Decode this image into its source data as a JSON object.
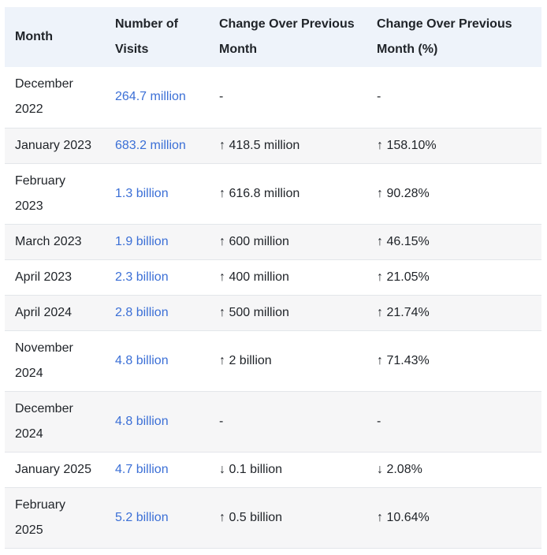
{
  "table": {
    "headers": {
      "month": "Month",
      "visits": "Number of Visits",
      "change": "Change Over Previous Month",
      "change_pct": "Change Over Previous Month (%)"
    },
    "rows": [
      {
        "month": "December 2022",
        "visits": "264.7 million",
        "change": "-",
        "change_pct": "-"
      },
      {
        "month": "January 2023",
        "visits": "683.2 million",
        "change": "↑ 418.5 million",
        "change_pct": "↑ 158.10%"
      },
      {
        "month": "February 2023",
        "visits": "1.3 billion",
        "change": "↑ 616.8 million",
        "change_pct": "↑ 90.28%"
      },
      {
        "month": "March 2023",
        "visits": "1.9 billion",
        "change": "↑ 600 million",
        "change_pct": "↑ 46.15%"
      },
      {
        "month": "April 2023",
        "visits": "2.3 billion",
        "change": "↑ 400 million",
        "change_pct": "↑ 21.05%"
      },
      {
        "month": "April 2024",
        "visits": "2.8 billion",
        "change": "↑ 500 million",
        "change_pct": "↑ 21.74%"
      },
      {
        "month": "November 2024",
        "visits": "4.8 billion",
        "change": "↑ 2 billion",
        "change_pct": "↑ 71.43%"
      },
      {
        "month": "December 2024",
        "visits": "4.8 billion",
        "change": "-",
        "change_pct": "-"
      },
      {
        "month": "January 2025",
        "visits": "4.7 billion",
        "change": "↓ 0.1 billion",
        "change_pct": "↓ 2.08%"
      },
      {
        "month": "February 2025",
        "visits": "5.2 billion",
        "change": "↑ 0.5 billion",
        "change_pct": "↑ 10.64%"
      }
    ]
  },
  "colors": {
    "header_bg": "#eef3fa",
    "stripe_bg": "#f6f6f7",
    "visits_text": "#3b6fd6",
    "border": "#e3e6ea"
  }
}
